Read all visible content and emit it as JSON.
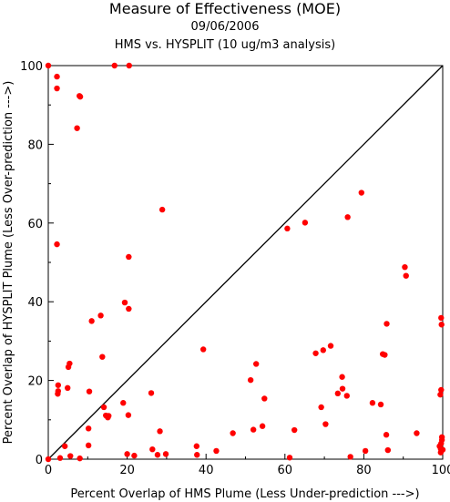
{
  "chart_data": {
    "type": "scatter",
    "title": "Measure of Effectiveness (MOE)",
    "subtitle_date": "09/06/2006",
    "subtitle": "HMS vs. HYSPLIT  (10 ug/m3 analysis)",
    "xlabel": "Percent Overlap of HMS Plume (Less Under-prediction --->)",
    "ylabel": "Percent Overlap of HYSPLIT Plume (Less Over-prediction --->)",
    "xlim": [
      0,
      100
    ],
    "ylim": [
      0,
      100
    ],
    "xticks": [
      "0",
      "20",
      "40",
      "60",
      "80",
      "100"
    ],
    "yticks": [
      "0",
      "20",
      "40",
      "60",
      "80",
      "100"
    ],
    "grid": false,
    "reference_line": "y = x",
    "marker_color": "#ff0000",
    "points": [
      [
        0,
        100
      ],
      [
        0,
        0
      ],
      [
        2.2,
        97.2
      ],
      [
        2.2,
        94.2
      ],
      [
        2.2,
        54.6
      ],
      [
        2.5,
        18.8
      ],
      [
        2.5,
        17.3
      ],
      [
        2.4,
        16.6
      ],
      [
        3,
        0.3
      ],
      [
        4.2,
        3.3
      ],
      [
        4.9,
        18.1
      ],
      [
        5.1,
        23.4
      ],
      [
        5.4,
        24.3
      ],
      [
        5.6,
        0.8
      ],
      [
        7.3,
        84.1
      ],
      [
        7.9,
        92.3
      ],
      [
        8.1,
        92.1
      ],
      [
        8,
        0.2
      ],
      [
        10.2,
        3.5
      ],
      [
        10.2,
        7.8
      ],
      [
        10.4,
        17.2
      ],
      [
        11,
        35.1
      ],
      [
        13.3,
        36.5
      ],
      [
        13.7,
        26
      ],
      [
        14.1,
        13.2
      ],
      [
        14.6,
        11.1
      ],
      [
        15.1,
        10.6
      ],
      [
        15.3,
        11
      ],
      [
        16.8,
        100
      ],
      [
        19,
        14.3
      ],
      [
        19.4,
        39.8
      ],
      [
        20,
        1.3
      ],
      [
        20.3,
        11.2
      ],
      [
        20.4,
        38.2
      ],
      [
        20.4,
        51.4
      ],
      [
        20.5,
        100
      ],
      [
        21.8,
        0.9
      ],
      [
        26.1,
        16.8
      ],
      [
        26.4,
        2.5
      ],
      [
        27.7,
        1.1
      ],
      [
        28.3,
        7.1
      ],
      [
        28.9,
        63.4
      ],
      [
        29.8,
        1.3
      ],
      [
        37.6,
        3.3
      ],
      [
        37.7,
        1.1
      ],
      [
        39.3,
        27.9
      ],
      [
        42.6,
        2.1
      ],
      [
        46.8,
        6.6
      ],
      [
        51.3,
        20.1
      ],
      [
        52,
        7.5
      ],
      [
        52.7,
        24.2
      ],
      [
        54.3,
        8.4
      ],
      [
        54.8,
        15.4
      ],
      [
        60.6,
        58.6
      ],
      [
        61.2,
        0.4
      ],
      [
        62.4,
        7.4
      ],
      [
        65.1,
        60.1
      ],
      [
        67.8,
        26.9
      ],
      [
        69.2,
        13.2
      ],
      [
        69.7,
        27.7
      ],
      [
        70.3,
        8.9
      ],
      [
        71.6,
        28.8
      ],
      [
        73.4,
        16.7
      ],
      [
        74.5,
        20.9
      ],
      [
        74.6,
        17.9
      ],
      [
        75.7,
        16.1
      ],
      [
        75.9,
        61.5
      ],
      [
        76.6,
        0.6
      ],
      [
        79.4,
        67.7
      ],
      [
        80.4,
        2.1
      ],
      [
        82.2,
        14.3
      ],
      [
        84.3,
        13.9
      ],
      [
        84.8,
        26.7
      ],
      [
        85.3,
        26.5
      ],
      [
        85.7,
        6.2
      ],
      [
        85.8,
        34.4
      ],
      [
        86.1,
        2.3
      ],
      [
        90.4,
        48.8
      ],
      [
        90.7,
        46.6
      ],
      [
        93.4,
        6.6
      ],
      [
        99.4,
        16.4
      ],
      [
        99.6,
        17.6
      ],
      [
        99.6,
        35.9
      ],
      [
        99.7,
        34.2
      ],
      [
        99.8,
        5.6
      ],
      [
        99.8,
        4.9
      ],
      [
        99.6,
        4
      ],
      [
        99.2,
        3.3
      ],
      [
        99.5,
        2.6
      ],
      [
        100,
        2.4
      ],
      [
        99.5,
        1.7
      ]
    ]
  }
}
